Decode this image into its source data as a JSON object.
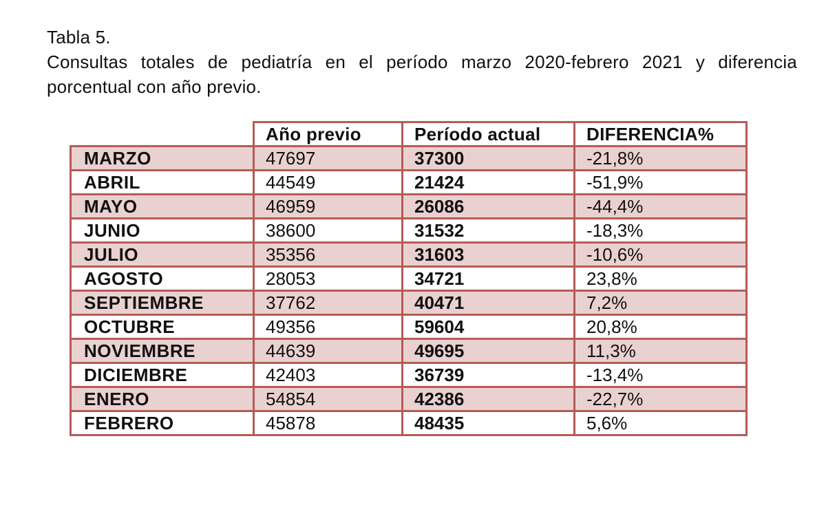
{
  "caption": {
    "label": "Tabla 5.",
    "line1": "Consultas totales de pediatría en el período marzo 2020-febrero 2021 y diferencia",
    "line2": "porcentual con año previo."
  },
  "table": {
    "headers": [
      "",
      "Año previo",
      "Período actual",
      "DIFERENCIA%"
    ],
    "rows": [
      {
        "month": "MARZO",
        "prev": "47697",
        "curr": "37300",
        "diff": "-21,8%"
      },
      {
        "month": "ABRIL",
        "prev": "44549",
        "curr": "21424",
        "diff": "-51,9%"
      },
      {
        "month": "MAYO",
        "prev": "46959",
        "curr": "26086",
        "diff": "-44,4%"
      },
      {
        "month": "JUNIO",
        "prev": "38600",
        "curr": "31532",
        "diff": "-18,3%"
      },
      {
        "month": "JULIO",
        "prev": "35356",
        "curr": "31603",
        "diff": "-10,6%"
      },
      {
        "month": "AGOSTO",
        "prev": "28053",
        "curr": "34721",
        "diff": "23,8%"
      },
      {
        "month": "SEPTIEMBRE",
        "prev": "37762",
        "curr": "40471",
        "diff": "7,2%"
      },
      {
        "month": "OCTUBRE",
        "prev": "49356",
        "curr": "59604",
        "diff": "20,8%"
      },
      {
        "month": "NOVIEMBRE",
        "prev": "44639",
        "curr": "49695",
        "diff": "11,3%"
      },
      {
        "month": "DICIEMBRE",
        "prev": "42403",
        "curr": "36739",
        "diff": "-13,4%"
      },
      {
        "month": "ENERO",
        "prev": "54854",
        "curr": "42386",
        "diff": "-22,7%"
      },
      {
        "month": "FEBRERO",
        "prev": "45878",
        "curr": "48435",
        "diff": "5,6%"
      }
    ]
  },
  "colors": {
    "border": "#b45b56",
    "shade": "#ead1d1"
  }
}
